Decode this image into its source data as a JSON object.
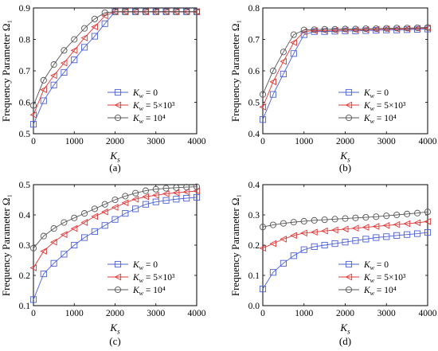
{
  "chart_data": [
    {
      "type": "line",
      "panel_label": "(a)",
      "xlabel": "K_s",
      "ylabel": "Frequency Parameter Ω₁",
      "xlim": [
        0,
        4000
      ],
      "ylim": [
        0.5,
        0.9
      ],
      "xticks": [
        0,
        1000,
        2000,
        3000,
        4000
      ],
      "yticks": [
        0.5,
        0.6,
        0.7,
        0.8,
        0.9
      ],
      "legend_position": "bottom-right",
      "x": [
        0,
        250,
        500,
        750,
        1000,
        1250,
        1500,
        1750,
        2000,
        2250,
        2500,
        2750,
        3000,
        3250,
        3500,
        3750,
        4000
      ],
      "series": [
        {
          "name": "K_w = 0",
          "color": "#4a5fd6",
          "marker": "square",
          "values": [
            0.53,
            0.605,
            0.655,
            0.695,
            0.735,
            0.775,
            0.81,
            0.85,
            0.888,
            0.888,
            0.888,
            0.888,
            0.888,
            0.888,
            0.888,
            0.888,
            0.888
          ]
        },
        {
          "name": "K_w = 5×10³",
          "color": "#e03535",
          "marker": "triangle-left",
          "values": [
            0.56,
            0.64,
            0.685,
            0.725,
            0.765,
            0.805,
            0.84,
            0.875,
            0.888,
            0.888,
            0.888,
            0.888,
            0.888,
            0.888,
            0.888,
            0.888,
            0.888
          ]
        },
        {
          "name": "K_w = 10⁴",
          "color": "#555555",
          "marker": "circle",
          "values": [
            0.59,
            0.67,
            0.72,
            0.765,
            0.8,
            0.835,
            0.865,
            0.885,
            0.888,
            0.888,
            0.888,
            0.888,
            0.888,
            0.888,
            0.888,
            0.888,
            0.888
          ]
        }
      ]
    },
    {
      "type": "line",
      "panel_label": "(b)",
      "xlabel": "K_s",
      "ylabel": "Frequency Parameter Ω₁",
      "xlim": [
        0,
        4000
      ],
      "ylim": [
        0.4,
        0.8
      ],
      "xticks": [
        0,
        1000,
        2000,
        3000,
        4000
      ],
      "yticks": [
        0.4,
        0.5,
        0.6,
        0.7,
        0.8
      ],
      "legend_position": "bottom-right",
      "x": [
        0,
        250,
        500,
        750,
        1000,
        1250,
        1500,
        1750,
        2000,
        2250,
        2500,
        2750,
        3000,
        3250,
        3500,
        3750,
        4000
      ],
      "series": [
        {
          "name": "K_w = 0",
          "color": "#4a5fd6",
          "marker": "square",
          "values": [
            0.445,
            0.525,
            0.59,
            0.655,
            0.715,
            0.725,
            0.725,
            0.726,
            0.727,
            0.727,
            0.728,
            0.729,
            0.73,
            0.73,
            0.731,
            0.732,
            0.733
          ]
        },
        {
          "name": "K_w = 5×10³",
          "color": "#e03535",
          "marker": "triangle-left",
          "values": [
            0.485,
            0.565,
            0.63,
            0.69,
            0.725,
            0.728,
            0.728,
            0.729,
            0.73,
            0.73,
            0.731,
            0.732,
            0.733,
            0.733,
            0.734,
            0.735,
            0.736
          ]
        },
        {
          "name": "K_w = 10⁴",
          "color": "#555555",
          "marker": "circle",
          "values": [
            0.525,
            0.6,
            0.66,
            0.715,
            0.73,
            0.731,
            0.732,
            0.732,
            0.733,
            0.733,
            0.734,
            0.734,
            0.735,
            0.736,
            0.736,
            0.737,
            0.738
          ]
        }
      ]
    },
    {
      "type": "line",
      "panel_label": "(c)",
      "xlabel": "K_s",
      "ylabel": "Frequency Parameter Ω₁",
      "xlim": [
        0,
        4000
      ],
      "ylim": [
        0.1,
        0.5
      ],
      "xticks": [
        0,
        1000,
        2000,
        3000,
        4000
      ],
      "yticks": [
        0.1,
        0.2,
        0.3,
        0.4,
        0.5
      ],
      "legend_position": "bottom-right",
      "x": [
        0,
        250,
        500,
        750,
        1000,
        1250,
        1500,
        1750,
        2000,
        2250,
        2500,
        2750,
        3000,
        3250,
        3500,
        3750,
        4000
      ],
      "series": [
        {
          "name": "K_w = 0",
          "color": "#4a5fd6",
          "marker": "square",
          "values": [
            0.12,
            0.205,
            0.24,
            0.27,
            0.3,
            0.325,
            0.345,
            0.365,
            0.385,
            0.405,
            0.42,
            0.435,
            0.443,
            0.448,
            0.452,
            0.455,
            0.458
          ]
        },
        {
          "name": "K_w = 5×10³",
          "color": "#e03535",
          "marker": "triangle-left",
          "values": [
            0.225,
            0.28,
            0.31,
            0.335,
            0.355,
            0.375,
            0.395,
            0.41,
            0.425,
            0.44,
            0.452,
            0.46,
            0.465,
            0.47,
            0.473,
            0.476,
            0.479
          ]
        },
        {
          "name": "K_w = 10⁴",
          "color": "#555555",
          "marker": "circle",
          "values": [
            0.29,
            0.33,
            0.355,
            0.375,
            0.39,
            0.405,
            0.42,
            0.435,
            0.45,
            0.462,
            0.472,
            0.48,
            0.485,
            0.488,
            0.49,
            0.492,
            0.493
          ]
        }
      ]
    },
    {
      "type": "line",
      "panel_label": "(d)",
      "xlabel": "K_s",
      "ylabel": "Frequency Parameter Ω₁",
      "xlim": [
        0,
        4000
      ],
      "ylim": [
        0.0,
        0.4
      ],
      "xticks": [
        0,
        1000,
        2000,
        3000,
        4000
      ],
      "yticks": [
        0.0,
        0.1,
        0.2,
        0.3,
        0.4
      ],
      "legend_position": "bottom-right",
      "x": [
        0,
        250,
        500,
        750,
        1000,
        1250,
        1500,
        1750,
        2000,
        2250,
        2500,
        2750,
        3000,
        3250,
        3500,
        3750,
        4000
      ],
      "series": [
        {
          "name": "K_w = 0",
          "color": "#4a5fd6",
          "marker": "square",
          "values": [
            0.055,
            0.11,
            0.14,
            0.165,
            0.185,
            0.195,
            0.2,
            0.205,
            0.21,
            0.215,
            0.22,
            0.225,
            0.228,
            0.232,
            0.235,
            0.238,
            0.242
          ]
        },
        {
          "name": "K_w = 5×10³",
          "color": "#e03535",
          "marker": "triangle-left",
          "values": [
            0.19,
            0.205,
            0.22,
            0.232,
            0.24,
            0.243,
            0.247,
            0.25,
            0.253,
            0.256,
            0.259,
            0.262,
            0.265,
            0.268,
            0.271,
            0.274,
            0.278
          ]
        },
        {
          "name": "K_w = 10⁴",
          "color": "#555555",
          "marker": "circle",
          "values": [
            0.26,
            0.267,
            0.272,
            0.276,
            0.279,
            0.282,
            0.284,
            0.286,
            0.288,
            0.29,
            0.292,
            0.294,
            0.297,
            0.3,
            0.303,
            0.306,
            0.31
          ]
        }
      ]
    }
  ]
}
